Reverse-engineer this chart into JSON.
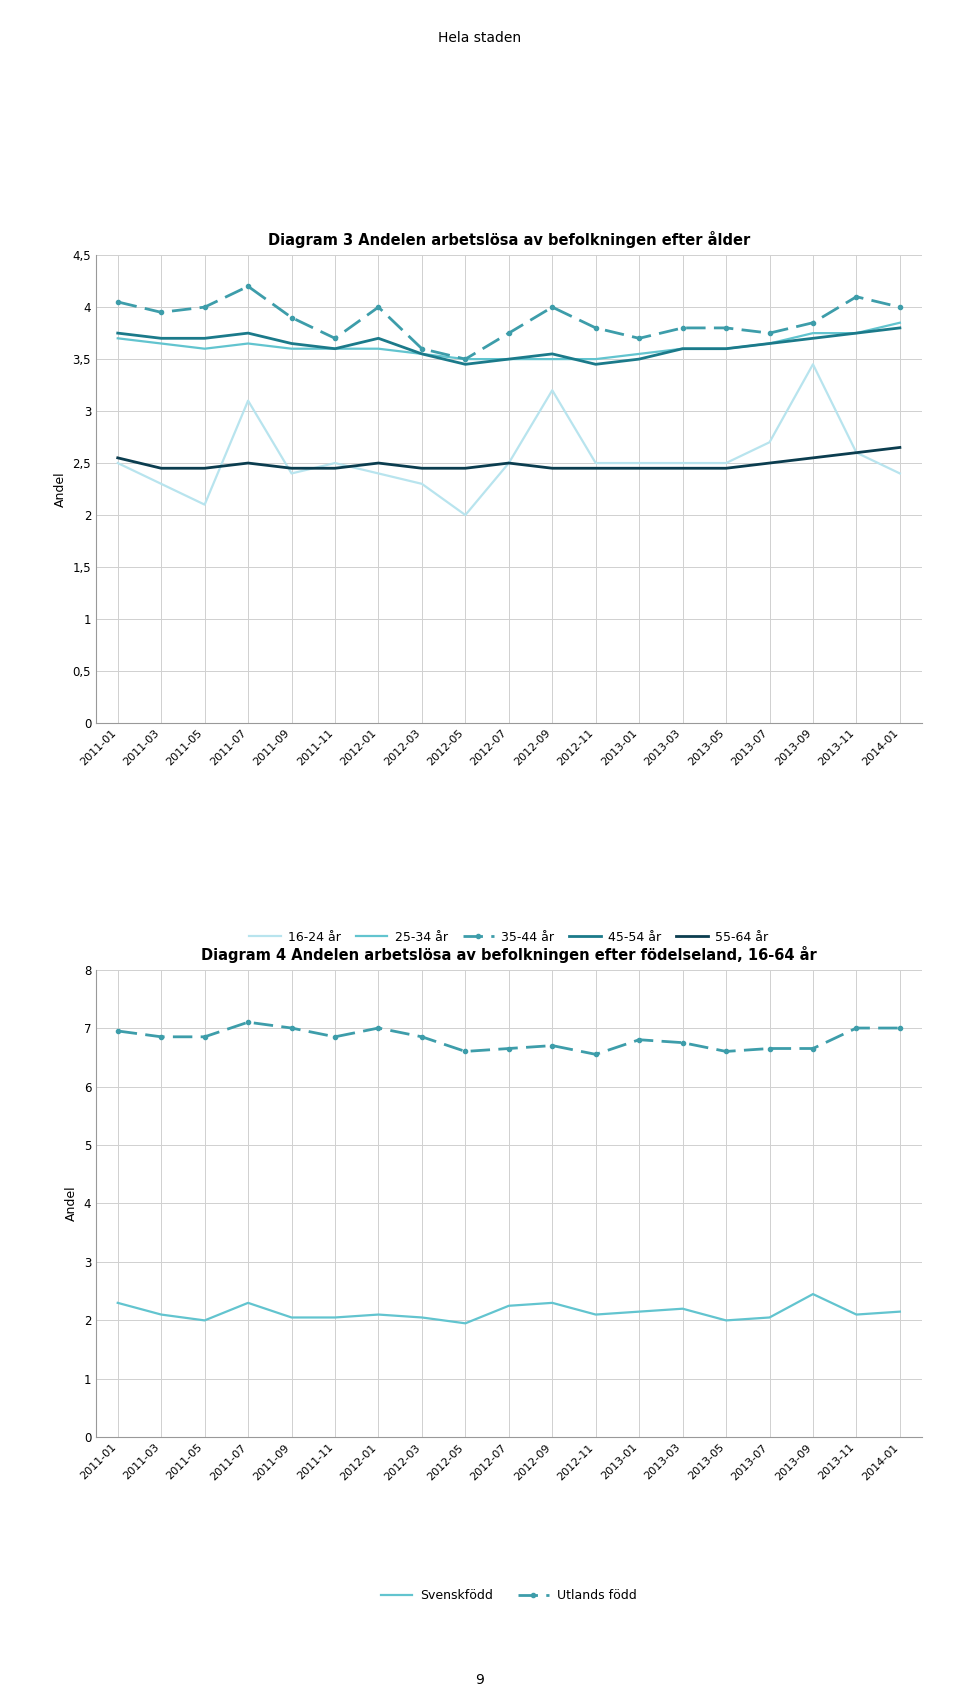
{
  "suptitle": "Hela staden",
  "page_number": "9",
  "chart1_title": "Diagram 3 Andelen arbetslösa av befolkningen efter ålder",
  "chart1_ylabel": "Andel",
  "chart1_ylim": [
    0,
    4.5
  ],
  "chart1_yticks": [
    0,
    0.5,
    1.0,
    1.5,
    2.0,
    2.5,
    3.0,
    3.5,
    4.0,
    4.5
  ],
  "chart1_yticklabels": [
    "0",
    "0,5",
    "1",
    "1,5",
    "2",
    "2,5",
    "3",
    "3,5",
    "4",
    "4,5"
  ],
  "chart2_title": "Diagram 4 Andelen arbetslösa av befolkningen efter födelseland, 16-64 år",
  "chart2_ylabel": "Andel",
  "chart2_ylim": [
    0,
    8
  ],
  "chart2_yticks": [
    0,
    1,
    2,
    3,
    4,
    5,
    6,
    7,
    8
  ],
  "chart2_yticklabels": [
    "0",
    "1",
    "2",
    "3",
    "4",
    "5",
    "6",
    "7",
    "8"
  ],
  "x_labels": [
    "2011-01",
    "2011-03",
    "2011-05",
    "2011-07",
    "2011-09",
    "2011-11",
    "2012-01",
    "2012-03",
    "2012-05",
    "2012-07",
    "2012-09",
    "2012-11",
    "2013-01",
    "2013-03",
    "2013-05",
    "2013-07",
    "2013-09",
    "2013-11",
    "2014-01"
  ],
  "age_16_24": [
    2.5,
    2.3,
    2.1,
    3.1,
    2.4,
    2.5,
    2.4,
    2.3,
    2.0,
    2.5,
    3.2,
    2.5,
    2.5,
    2.5,
    2.5,
    2.7,
    3.45,
    2.6,
    2.4
  ],
  "age_25_34": [
    3.7,
    3.65,
    3.6,
    3.65,
    3.6,
    3.6,
    3.6,
    3.55,
    3.5,
    3.5,
    3.5,
    3.5,
    3.55,
    3.6,
    3.6,
    3.65,
    3.75,
    3.75,
    3.85
  ],
  "age_35_44": [
    4.05,
    3.95,
    4.0,
    4.2,
    3.9,
    3.7,
    4.0,
    3.6,
    3.5,
    3.75,
    4.0,
    3.8,
    3.7,
    3.8,
    3.8,
    3.75,
    3.85,
    4.1,
    4.0
  ],
  "age_45_54": [
    3.75,
    3.7,
    3.7,
    3.75,
    3.65,
    3.6,
    3.7,
    3.55,
    3.45,
    3.5,
    3.55,
    3.45,
    3.5,
    3.6,
    3.6,
    3.65,
    3.7,
    3.75,
    3.8
  ],
  "age_55_64": [
    2.55,
    2.45,
    2.45,
    2.5,
    2.45,
    2.45,
    2.5,
    2.45,
    2.45,
    2.5,
    2.45,
    2.45,
    2.45,
    2.45,
    2.45,
    2.5,
    2.55,
    2.6,
    2.65
  ],
  "svenskfodd": [
    2.3,
    2.1,
    2.0,
    2.3,
    2.05,
    2.05,
    2.1,
    2.05,
    1.95,
    2.25,
    2.3,
    2.1,
    2.15,
    2.2,
    2.0,
    2.05,
    2.45,
    2.1,
    2.15
  ],
  "utlandsfodd": [
    6.95,
    6.85,
    6.85,
    7.1,
    7.0,
    6.85,
    7.0,
    6.85,
    6.6,
    6.65,
    6.7,
    6.55,
    6.8,
    6.75,
    6.6,
    6.65,
    6.65,
    7.0,
    7.0
  ],
  "color_16_24": "#b8e4ee",
  "color_25_34": "#62c4cf",
  "color_35_44": "#3d9daa",
  "color_45_54": "#1b7a8a",
  "color_55_64": "#0b3d4f",
  "color_svenskfodd": "#62c4cf",
  "color_utlandsfodd": "#3d9daa",
  "background_color": "#ffffff",
  "grid_color": "#d0d0d0"
}
